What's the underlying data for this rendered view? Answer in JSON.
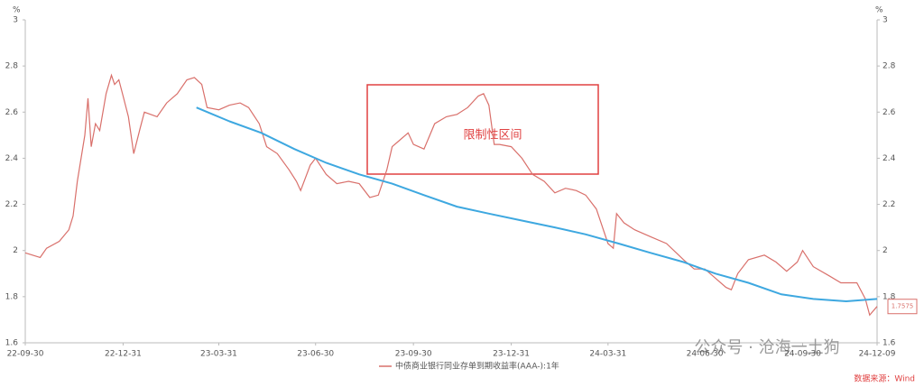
{
  "chart_data": {
    "type": "line",
    "ylabel": "%",
    "y2label": "%",
    "xlim": [
      "22-09-30",
      "24-12-09"
    ],
    "xticks": [
      "22-09-30",
      "22-12-31",
      "23-03-31",
      "23-06-30",
      "23-09-30",
      "23-12-31",
      "24-03-31",
      "24-06-30",
      "24-09-30",
      "24-12-09"
    ],
    "ylim": [
      1.6,
      3
    ],
    "yticks": [
      1.6,
      1.8,
      2,
      2.2,
      2.4,
      2.6,
      2.8,
      3
    ],
    "y2lim": [
      1.6,
      3
    ],
    "y2ticks": [
      1.6,
      1.8,
      2,
      2.2,
      2.4,
      2.6,
      2.8,
      3
    ],
    "grid": false,
    "annotation": "限制性区间",
    "source": "数据来源：Wind",
    "watermark": "公众号 · 沧海一土狗",
    "series": [
      {
        "name": "中债商业银行同业存单到期收益率(AAA-):1年",
        "color": "#d9706b",
        "x": [
          "22-09-30",
          "22-10-14",
          "22-10-20",
          "22-11-01",
          "22-11-10",
          "22-11-14",
          "22-11-18",
          "22-11-25",
          "22-11-28",
          "22-12-01",
          "22-12-05",
          "22-12-09",
          "22-12-15",
          "22-12-20",
          "22-12-23",
          "22-12-27",
          "22-12-31",
          "23-01-05",
          "23-01-10",
          "23-01-16",
          "23-01-20",
          "23-02-01",
          "23-02-10",
          "23-02-20",
          "23-03-01",
          "23-03-08",
          "23-03-15",
          "23-03-20",
          "23-03-31",
          "23-04-10",
          "23-04-20",
          "23-04-28",
          "23-05-08",
          "23-05-15",
          "23-05-25",
          "23-06-05",
          "23-06-12",
          "23-06-16",
          "23-06-25",
          "23-06-30",
          "23-07-10",
          "23-07-20",
          "23-07-31",
          "23-08-10",
          "23-08-20",
          "23-08-28",
          "23-09-05",
          "23-09-10",
          "23-09-15",
          "23-09-25",
          "23-09-30",
          "23-10-10",
          "23-10-20",
          "23-10-31",
          "23-11-10",
          "23-11-20",
          "23-11-30",
          "23-12-05",
          "23-12-10",
          "23-12-15",
          "23-12-20",
          "23-12-31",
          "24-01-10",
          "24-01-20",
          "24-01-31",
          "24-02-10",
          "24-02-20",
          "24-03-01",
          "24-03-10",
          "24-03-20",
          "24-03-31",
          "24-04-05",
          "24-04-08",
          "24-04-15",
          "24-04-25",
          "24-05-10",
          "24-05-25",
          "24-06-10",
          "24-06-20",
          "24-06-30",
          "24-07-10",
          "24-07-20",
          "24-07-25",
          "24-07-31",
          "24-08-10",
          "24-08-25",
          "24-09-05",
          "24-09-15",
          "24-09-25",
          "24-09-30",
          "24-10-10",
          "24-10-25",
          "24-11-05",
          "24-11-20",
          "24-11-28",
          "24-12-02",
          "24-12-09"
        ],
        "values": [
          1.99,
          1.97,
          2.01,
          2.04,
          2.09,
          2.15,
          2.3,
          2.5,
          2.66,
          2.45,
          2.55,
          2.52,
          2.68,
          2.76,
          2.72,
          2.74,
          2.67,
          2.58,
          2.42,
          2.53,
          2.6,
          2.58,
          2.64,
          2.68,
          2.74,
          2.75,
          2.72,
          2.62,
          2.61,
          2.63,
          2.64,
          2.62,
          2.55,
          2.45,
          2.42,
          2.35,
          2.3,
          2.26,
          2.37,
          2.4,
          2.33,
          2.29,
          2.3,
          2.29,
          2.23,
          2.24,
          2.35,
          2.45,
          2.47,
          2.51,
          2.46,
          2.44,
          2.55,
          2.58,
          2.59,
          2.62,
          2.67,
          2.68,
          2.63,
          2.46,
          2.46,
          2.45,
          2.4,
          2.33,
          2.3,
          2.25,
          2.27,
          2.26,
          2.24,
          2.18,
          2.03,
          2.01,
          2.16,
          2.12,
          2.09,
          2.06,
          2.03,
          1.96,
          1.92,
          1.92,
          1.88,
          1.84,
          1.83,
          1.9,
          1.96,
          1.98,
          1.95,
          1.91,
          1.95,
          2,
          1.93,
          1.89,
          1.86,
          1.86,
          1.79,
          1.72,
          1.7575
        ]
      },
      {
        "color": "#3ea8e0",
        "x": [
          "23-03-10",
          "23-04-10",
          "23-05-10",
          "23-06-10",
          "23-07-10",
          "23-08-10",
          "23-09-10",
          "23-10-10",
          "23-11-10",
          "23-12-10",
          "24-01-10",
          "24-02-10",
          "24-03-10",
          "24-04-10",
          "24-05-10",
          "24-06-10",
          "24-07-10",
          "24-08-10",
          "24-09-10",
          "24-10-10",
          "24-11-10",
          "24-12-09"
        ],
        "values": [
          2.62,
          2.56,
          2.51,
          2.44,
          2.38,
          2.33,
          2.29,
          2.24,
          2.19,
          2.16,
          2.13,
          2.1,
          2.07,
          2.03,
          1.99,
          1.95,
          1.9,
          1.86,
          1.81,
          1.79,
          1.78,
          1.79
        ]
      }
    ]
  }
}
